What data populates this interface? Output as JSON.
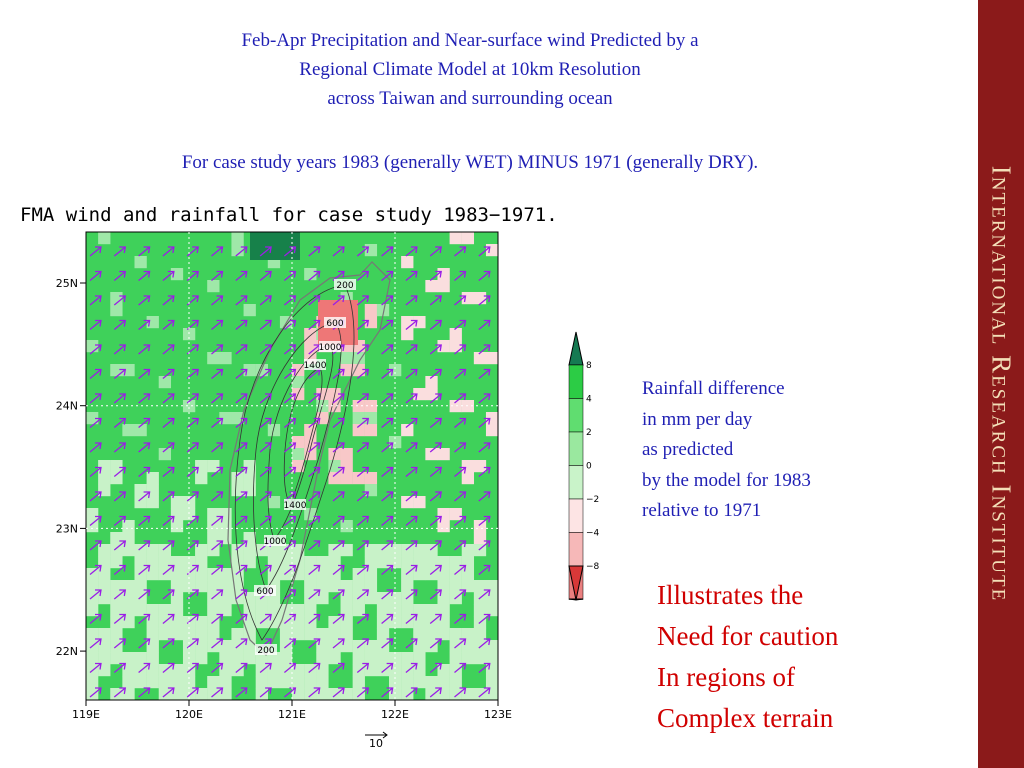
{
  "header": {
    "title": [
      "Feb-Apr Precipitation and Near-surface wind Predicted by a",
      "Regional Climate Model at 10km Resolution",
      "across Taiwan and surrounding ocean"
    ],
    "subtitle": "For case study years 1983 (generally WET) MINUS 1971 (generally DRY)."
  },
  "map": {
    "title": "FMA wind and rainfall for case study 1983−1971.",
    "lat_labels": [
      "25N",
      "24N",
      "23N",
      "22N"
    ],
    "lon_labels": [
      "119E",
      "120E",
      "121E",
      "122E",
      "123E"
    ],
    "contour_labels": [
      "200",
      "600",
      "1000",
      "1400",
      "1400",
      "1000",
      "600",
      "200"
    ],
    "colorbar_labels": [
      "8",
      "4",
      "2",
      "0",
      "−2",
      "−4",
      "−8"
    ],
    "vector_scale": "10"
  },
  "legend_text": [
    "Rainfall difference",
    "in mm per day",
    "as predicted",
    "by the model for 1983",
    "relative to 1971"
  ],
  "callout": [
    "Illustrates the",
    "Need for caution",
    "In regions of",
    "Complex terrain"
  ],
  "sidebar": "International Research Institute"
}
